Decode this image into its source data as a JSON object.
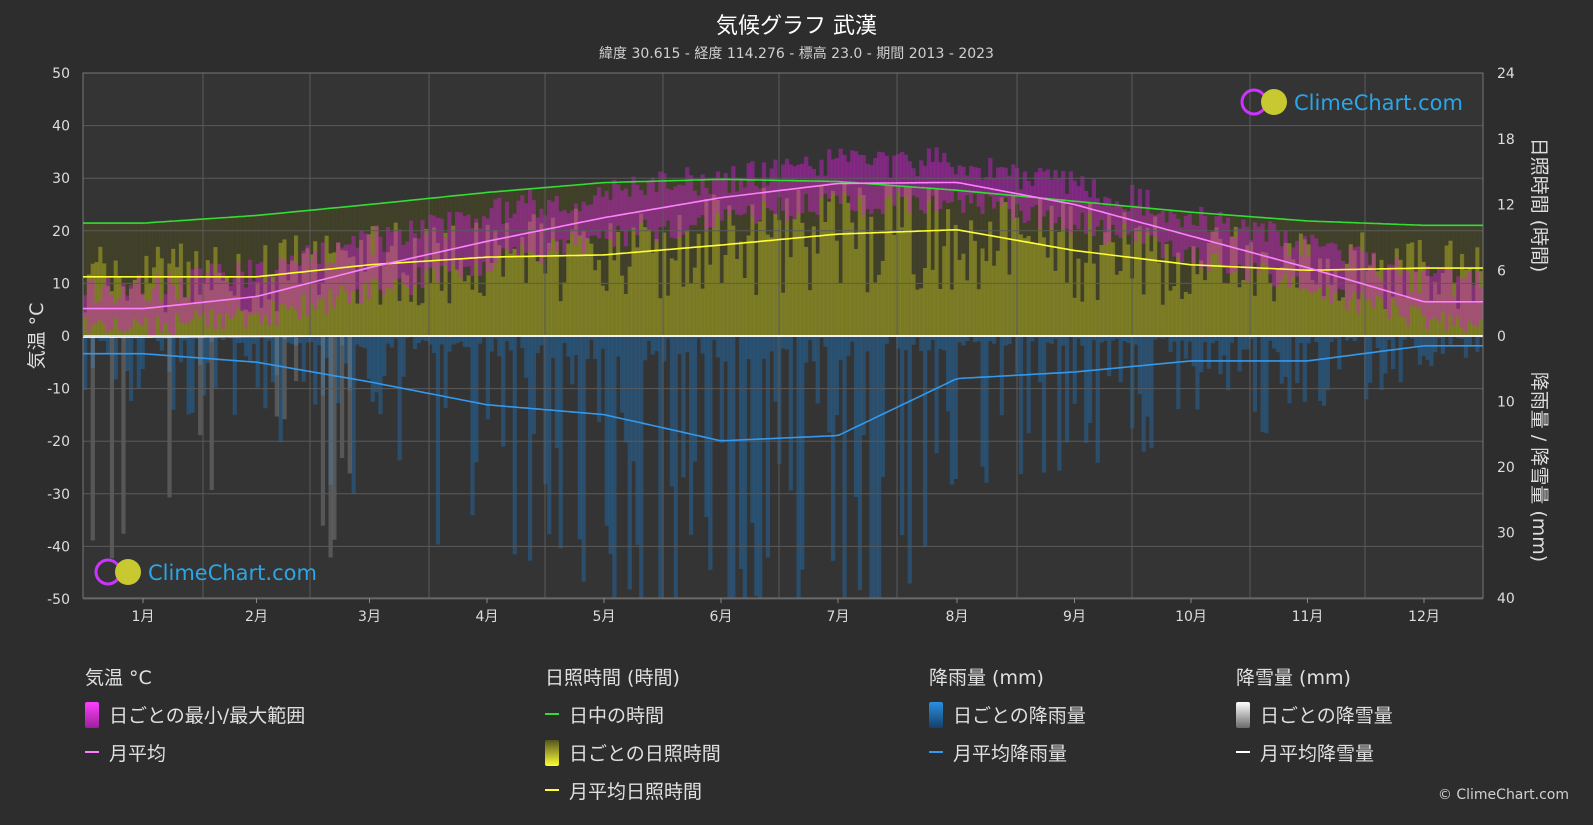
{
  "header": {
    "title": "気候グラフ 武漢",
    "subtitle": "緯度 30.615 - 経度 114.276 - 標高 23.0 - 期間 2013 - 2023"
  },
  "watermark": {
    "text": "ClimeChart.com"
  },
  "copyright": "© ClimeChart.com",
  "legend": {
    "temperature": {
      "heading": "気温 °C",
      "range_label": "日ごとの最小/最大範囲",
      "avg_label": "月平均"
    },
    "sunshine": {
      "heading": "日照時間 (時間)",
      "daylight_label": "日中の時間",
      "daily_label": "日ごとの日照時間",
      "avg_label": "月平均日照時間"
    },
    "rain": {
      "heading": "降雨量 (mm)",
      "daily_label": "日ごとの降雨量",
      "avg_label": "月平均降雨量"
    },
    "snow": {
      "heading": "降雪量 (mm)",
      "daily_label": "日ごとの降雪量",
      "avg_label": "月平均降雪量"
    }
  },
  "colors": {
    "background": "#2d2d2d",
    "grid": "#5a5a5a",
    "temp_range": "#d020d0",
    "temp_avg": "#ff80ff",
    "daylight": "#33dd33",
    "sunshine_daily": "#aaaa22",
    "sunshine_avg": "#ffff33",
    "rain_daily": "#1e6fb0",
    "rain_avg": "#3399ee",
    "snow_daily": "#9a9a9a",
    "snow_avg": "#ffffff",
    "brand": "#2aa6e8"
  },
  "chart_data": {
    "type": "line",
    "categories": [
      "1月",
      "2月",
      "3月",
      "4月",
      "5月",
      "6月",
      "7月",
      "8月",
      "9月",
      "10月",
      "11月",
      "12月"
    ],
    "y_left": {
      "label": "気温 °C",
      "lim": [
        -50,
        50
      ],
      "ticks": [
        50,
        40,
        30,
        20,
        10,
        0,
        -10,
        -20,
        -30,
        -40,
        -50
      ]
    },
    "y_right_top": {
      "label": "日照時間 (時間)",
      "lim": [
        0,
        24
      ],
      "ticks": [
        24,
        18,
        12,
        6,
        0
      ]
    },
    "y_right_bottom": {
      "label": "降雨量 / 降雪量 (mm)",
      "lim": [
        0,
        40
      ],
      "ticks": [
        10,
        20,
        30,
        40
      ]
    },
    "grid": true,
    "series": [
      {
        "name": "日中の時間",
        "axis": "sunshine",
        "values": [
          10.3,
          11.0,
          12.0,
          13.1,
          14.0,
          14.3,
          14.1,
          13.3,
          12.3,
          11.3,
          10.5,
          10.1
        ]
      },
      {
        "name": "月平均日照時間",
        "axis": "sunshine",
        "values": [
          5.4,
          5.4,
          6.5,
          7.2,
          7.4,
          8.3,
          9.3,
          9.7,
          7.8,
          6.5,
          6.0,
          6.2
        ]
      },
      {
        "name": "月平均",
        "axis": "temperature",
        "values": [
          5.2,
          7.5,
          13.0,
          18.0,
          22.5,
          26.3,
          29.0,
          29.2,
          25.0,
          19.0,
          13.0,
          6.5
        ]
      },
      {
        "name": "日ごとの最小/最大範囲 (最小)",
        "axis": "temperature",
        "values": [
          1.5,
          3.5,
          8.5,
          13.5,
          18.5,
          22.5,
          25.5,
          25.5,
          21.5,
          15.5,
          9.0,
          3.0
        ]
      },
      {
        "name": "日ごとの最小/最大範囲 (最大)",
        "axis": "temperature",
        "values": [
          9.0,
          12.0,
          18.0,
          23.5,
          27.5,
          30.0,
          33.0,
          33.0,
          29.0,
          23.0,
          17.0,
          10.5
        ]
      },
      {
        "name": "月平均降雨量",
        "axis": "precipitation",
        "values": [
          2.7,
          4.0,
          7.0,
          10.5,
          12.0,
          16.0,
          15.2,
          6.5,
          5.5,
          3.8,
          3.8,
          1.5
        ]
      },
      {
        "name": "月平均降雪量",
        "axis": "precipitation",
        "values": [
          0.2,
          0.1,
          0,
          0,
          0,
          0,
          0,
          0,
          0,
          0,
          0,
          0
        ]
      }
    ]
  }
}
